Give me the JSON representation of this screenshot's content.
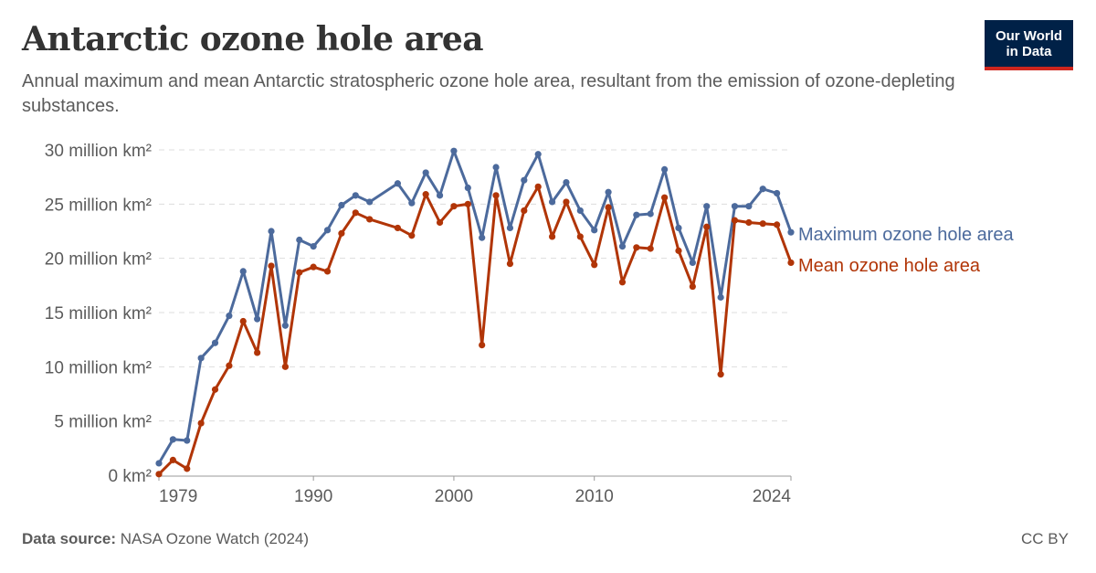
{
  "header": {
    "title": "Antarctic ozone hole area",
    "subtitle": "Annual maximum and mean Antarctic stratospheric ozone hole area, resultant from the emission of ozone-depleting substances.",
    "logo_line1": "Our World",
    "logo_line2": "in Data"
  },
  "footer": {
    "source_label": "Data source:",
    "source_text": "NASA Ozone Watch (2024)",
    "license": "CC BY"
  },
  "colors": {
    "max_series": "#4c6a9c",
    "mean_series": "#b13507",
    "grid": "#dddddd",
    "axis": "#999999"
  },
  "chart_data": {
    "type": "line",
    "title": "Antarctic ozone hole area",
    "xlabel": "",
    "ylabel": "",
    "xlim": [
      1979,
      2024
    ],
    "ylim": [
      0,
      30
    ],
    "y_ticks": [
      {
        "value": 0,
        "label": "0 km²"
      },
      {
        "value": 5,
        "label": "5 million km²"
      },
      {
        "value": 10,
        "label": "10 million km²"
      },
      {
        "value": 15,
        "label": "15 million km²"
      },
      {
        "value": 20,
        "label": "20 million km²"
      },
      {
        "value": 25,
        "label": "25 million km²"
      },
      {
        "value": 30,
        "label": "30 million km²"
      }
    ],
    "x_ticks": [
      1979,
      1990,
      2000,
      2010,
      2024
    ],
    "grid": true,
    "legend": "right",
    "series": [
      {
        "name": "Maximum ozone hole area",
        "key": "max",
        "points": [
          [
            1979,
            1.1
          ],
          [
            1980,
            3.3
          ],
          [
            1981,
            3.2
          ],
          [
            1982,
            10.8
          ],
          [
            1983,
            12.2
          ],
          [
            1984,
            14.7
          ],
          [
            1985,
            18.8
          ],
          [
            1986,
            14.4
          ],
          [
            1987,
            22.5
          ],
          [
            1988,
            13.8
          ],
          [
            1989,
            21.7
          ],
          [
            1990,
            21.1
          ],
          [
            1991,
            22.6
          ],
          [
            1992,
            24.9
          ],
          [
            1993,
            25.8
          ],
          [
            1994,
            25.2
          ],
          [
            1996,
            26.9
          ],
          [
            1997,
            25.1
          ],
          [
            1998,
            27.9
          ],
          [
            1999,
            25.8
          ],
          [
            2000,
            29.9
          ],
          [
            2001,
            26.5
          ],
          [
            2002,
            21.9
          ],
          [
            2003,
            28.4
          ],
          [
            2004,
            22.8
          ],
          [
            2005,
            27.2
          ],
          [
            2006,
            29.6
          ],
          [
            2007,
            25.2
          ],
          [
            2008,
            27.0
          ],
          [
            2009,
            24.4
          ],
          [
            2010,
            22.6
          ],
          [
            2011,
            26.1
          ],
          [
            2012,
            21.1
          ],
          [
            2013,
            24.0
          ],
          [
            2014,
            24.1
          ],
          [
            2015,
            28.2
          ],
          [
            2016,
            22.8
          ],
          [
            2017,
            19.6
          ],
          [
            2018,
            24.8
          ],
          [
            2019,
            16.4
          ],
          [
            2020,
            24.8
          ],
          [
            2021,
            24.8
          ],
          [
            2022,
            26.4
          ],
          [
            2023,
            26.0
          ],
          [
            2024,
            22.4
          ]
        ]
      },
      {
        "name": "Mean ozone hole area",
        "key": "mean",
        "points": [
          [
            1979,
            0.1
          ],
          [
            1980,
            1.4
          ],
          [
            1981,
            0.6
          ],
          [
            1982,
            4.8
          ],
          [
            1983,
            7.9
          ],
          [
            1984,
            10.1
          ],
          [
            1985,
            14.2
          ],
          [
            1986,
            11.3
          ],
          [
            1987,
            19.3
          ],
          [
            1988,
            10.0
          ],
          [
            1989,
            18.7
          ],
          [
            1990,
            19.2
          ],
          [
            1991,
            18.8
          ],
          [
            1992,
            22.3
          ],
          [
            1993,
            24.2
          ],
          [
            1994,
            23.6
          ],
          [
            1996,
            22.8
          ],
          [
            1997,
            22.1
          ],
          [
            1998,
            25.9
          ],
          [
            1999,
            23.3
          ],
          [
            2000,
            24.8
          ],
          [
            2001,
            25.0
          ],
          [
            2002,
            12.0
          ],
          [
            2003,
            25.8
          ],
          [
            2004,
            19.5
          ],
          [
            2005,
            24.4
          ],
          [
            2006,
            26.6
          ],
          [
            2007,
            22.0
          ],
          [
            2008,
            25.2
          ],
          [
            2009,
            22.0
          ],
          [
            2010,
            19.4
          ],
          [
            2011,
            24.7
          ],
          [
            2012,
            17.8
          ],
          [
            2013,
            21.0
          ],
          [
            2014,
            20.9
          ],
          [
            2015,
            25.6
          ],
          [
            2016,
            20.7
          ],
          [
            2017,
            17.4
          ],
          [
            2018,
            22.9
          ],
          [
            2019,
            9.3
          ],
          [
            2020,
            23.5
          ],
          [
            2021,
            23.3
          ],
          [
            2022,
            23.2
          ],
          [
            2023,
            23.1
          ],
          [
            2024,
            19.6
          ]
        ]
      }
    ]
  }
}
